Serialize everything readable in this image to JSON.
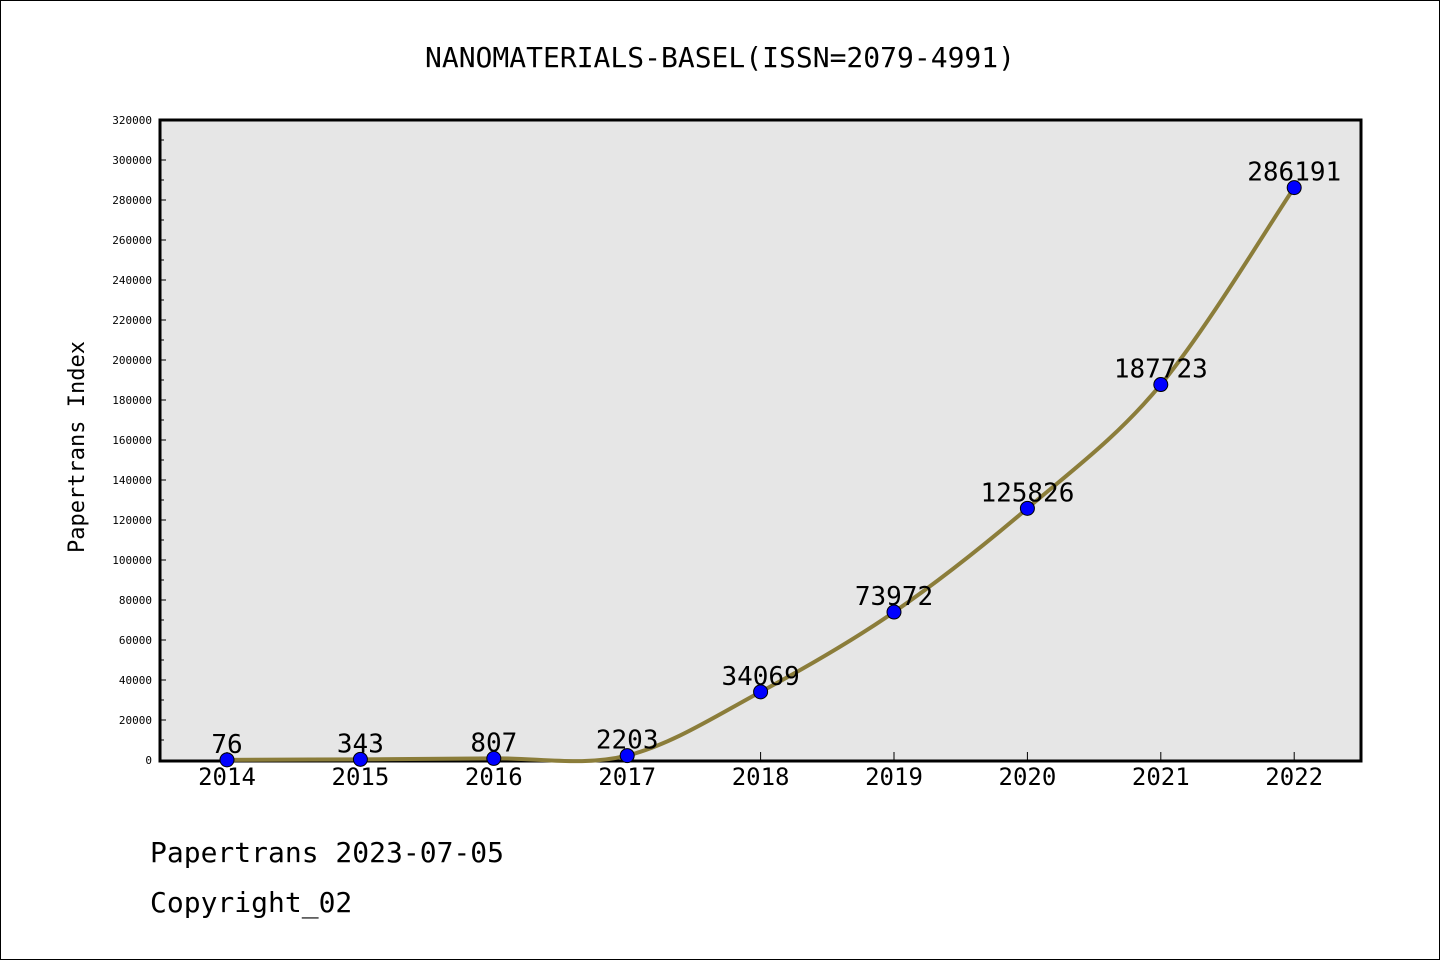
{
  "chart_data": {
    "type": "line",
    "title": "NANOMATERIALS-BASEL(ISSN=2079-4991)",
    "xlabel": "",
    "ylabel": "Papertrans Index",
    "categories": [
      "2014",
      "2015",
      "2016",
      "2017",
      "2018",
      "2019",
      "2020",
      "2021",
      "2022"
    ],
    "series": [
      {
        "values": [
          76,
          343,
          807,
          2203,
          34069,
          73972,
          125826,
          187723,
          286191
        ]
      }
    ],
    "data_labels": [
      "76",
      "343",
      "807",
      "2203",
      "34069",
      "73972",
      "125826",
      "187723",
      "286191"
    ],
    "ylim": [
      0,
      320000
    ],
    "yticks": [
      "0",
      "20000",
      "40000",
      "60000",
      "80000",
      "100000",
      "120000",
      "140000",
      "160000",
      "180000",
      "200000",
      "220000",
      "240000",
      "260000",
      "280000",
      "300000",
      "320000"
    ],
    "grid": false,
    "plot_background": "#e6e6e6",
    "line_color": "#8b7d3a",
    "marker_color": "#0000ff"
  },
  "footer": {
    "date_line": "Papertrans 2023-07-05",
    "copyright_line": "Copyright_02"
  }
}
